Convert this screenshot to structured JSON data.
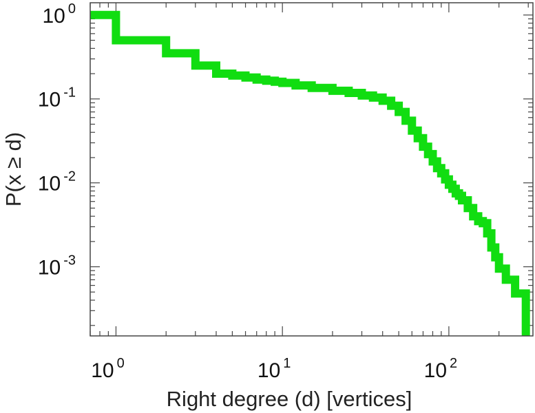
{
  "chart_data": {
    "type": "line",
    "line_style": "step",
    "xlabel": "Right degree (d) [vertices]",
    "ylabel": "P(x ≥ d)",
    "x_scale": "log",
    "y_scale": "log",
    "xlim": [
      0.7,
      320
    ],
    "ylim": [
      0.00015,
      1.4
    ],
    "x_ticks": [
      {
        "base": "10",
        "exp": "0",
        "value": 1
      },
      {
        "base": "10",
        "exp": "1",
        "value": 10
      },
      {
        "base": "10",
        "exp": "2",
        "value": 100
      }
    ],
    "y_ticks": [
      {
        "base": "10",
        "exp": "0",
        "value": 1
      },
      {
        "base": "10",
        "exp": "-1",
        "value": 0.1
      },
      {
        "base": "10",
        "exp": "-2",
        "value": 0.01
      },
      {
        "base": "10",
        "exp": "-3",
        "value": 0.001
      }
    ],
    "grid": false,
    "series": [
      {
        "color": "#11dd11",
        "x": [
          0.7,
          1,
          2,
          3,
          4,
          5,
          6,
          7,
          8,
          9,
          10,
          12,
          15,
          20,
          25,
          30,
          35,
          40,
          45,
          50,
          55,
          60,
          65,
          70,
          75,
          80,
          85,
          90,
          95,
          100,
          105,
          110,
          115,
          120,
          130,
          140,
          150,
          160,
          170,
          180,
          190,
          200,
          220,
          250,
          290
        ],
        "y": [
          1.0,
          0.5,
          0.35,
          0.25,
          0.2,
          0.19,
          0.18,
          0.17,
          0.165,
          0.16,
          0.155,
          0.145,
          0.135,
          0.125,
          0.118,
          0.11,
          0.104,
          0.095,
          0.083,
          0.07,
          0.055,
          0.042,
          0.034,
          0.027,
          0.022,
          0.018,
          0.015,
          0.013,
          0.011,
          0.0095,
          0.0085,
          0.0075,
          0.007,
          0.0062,
          0.005,
          0.004,
          0.0035,
          0.0033,
          0.0025,
          0.0017,
          0.0013,
          0.00095,
          0.0007,
          0.00048,
          0.00016
        ]
      }
    ]
  }
}
